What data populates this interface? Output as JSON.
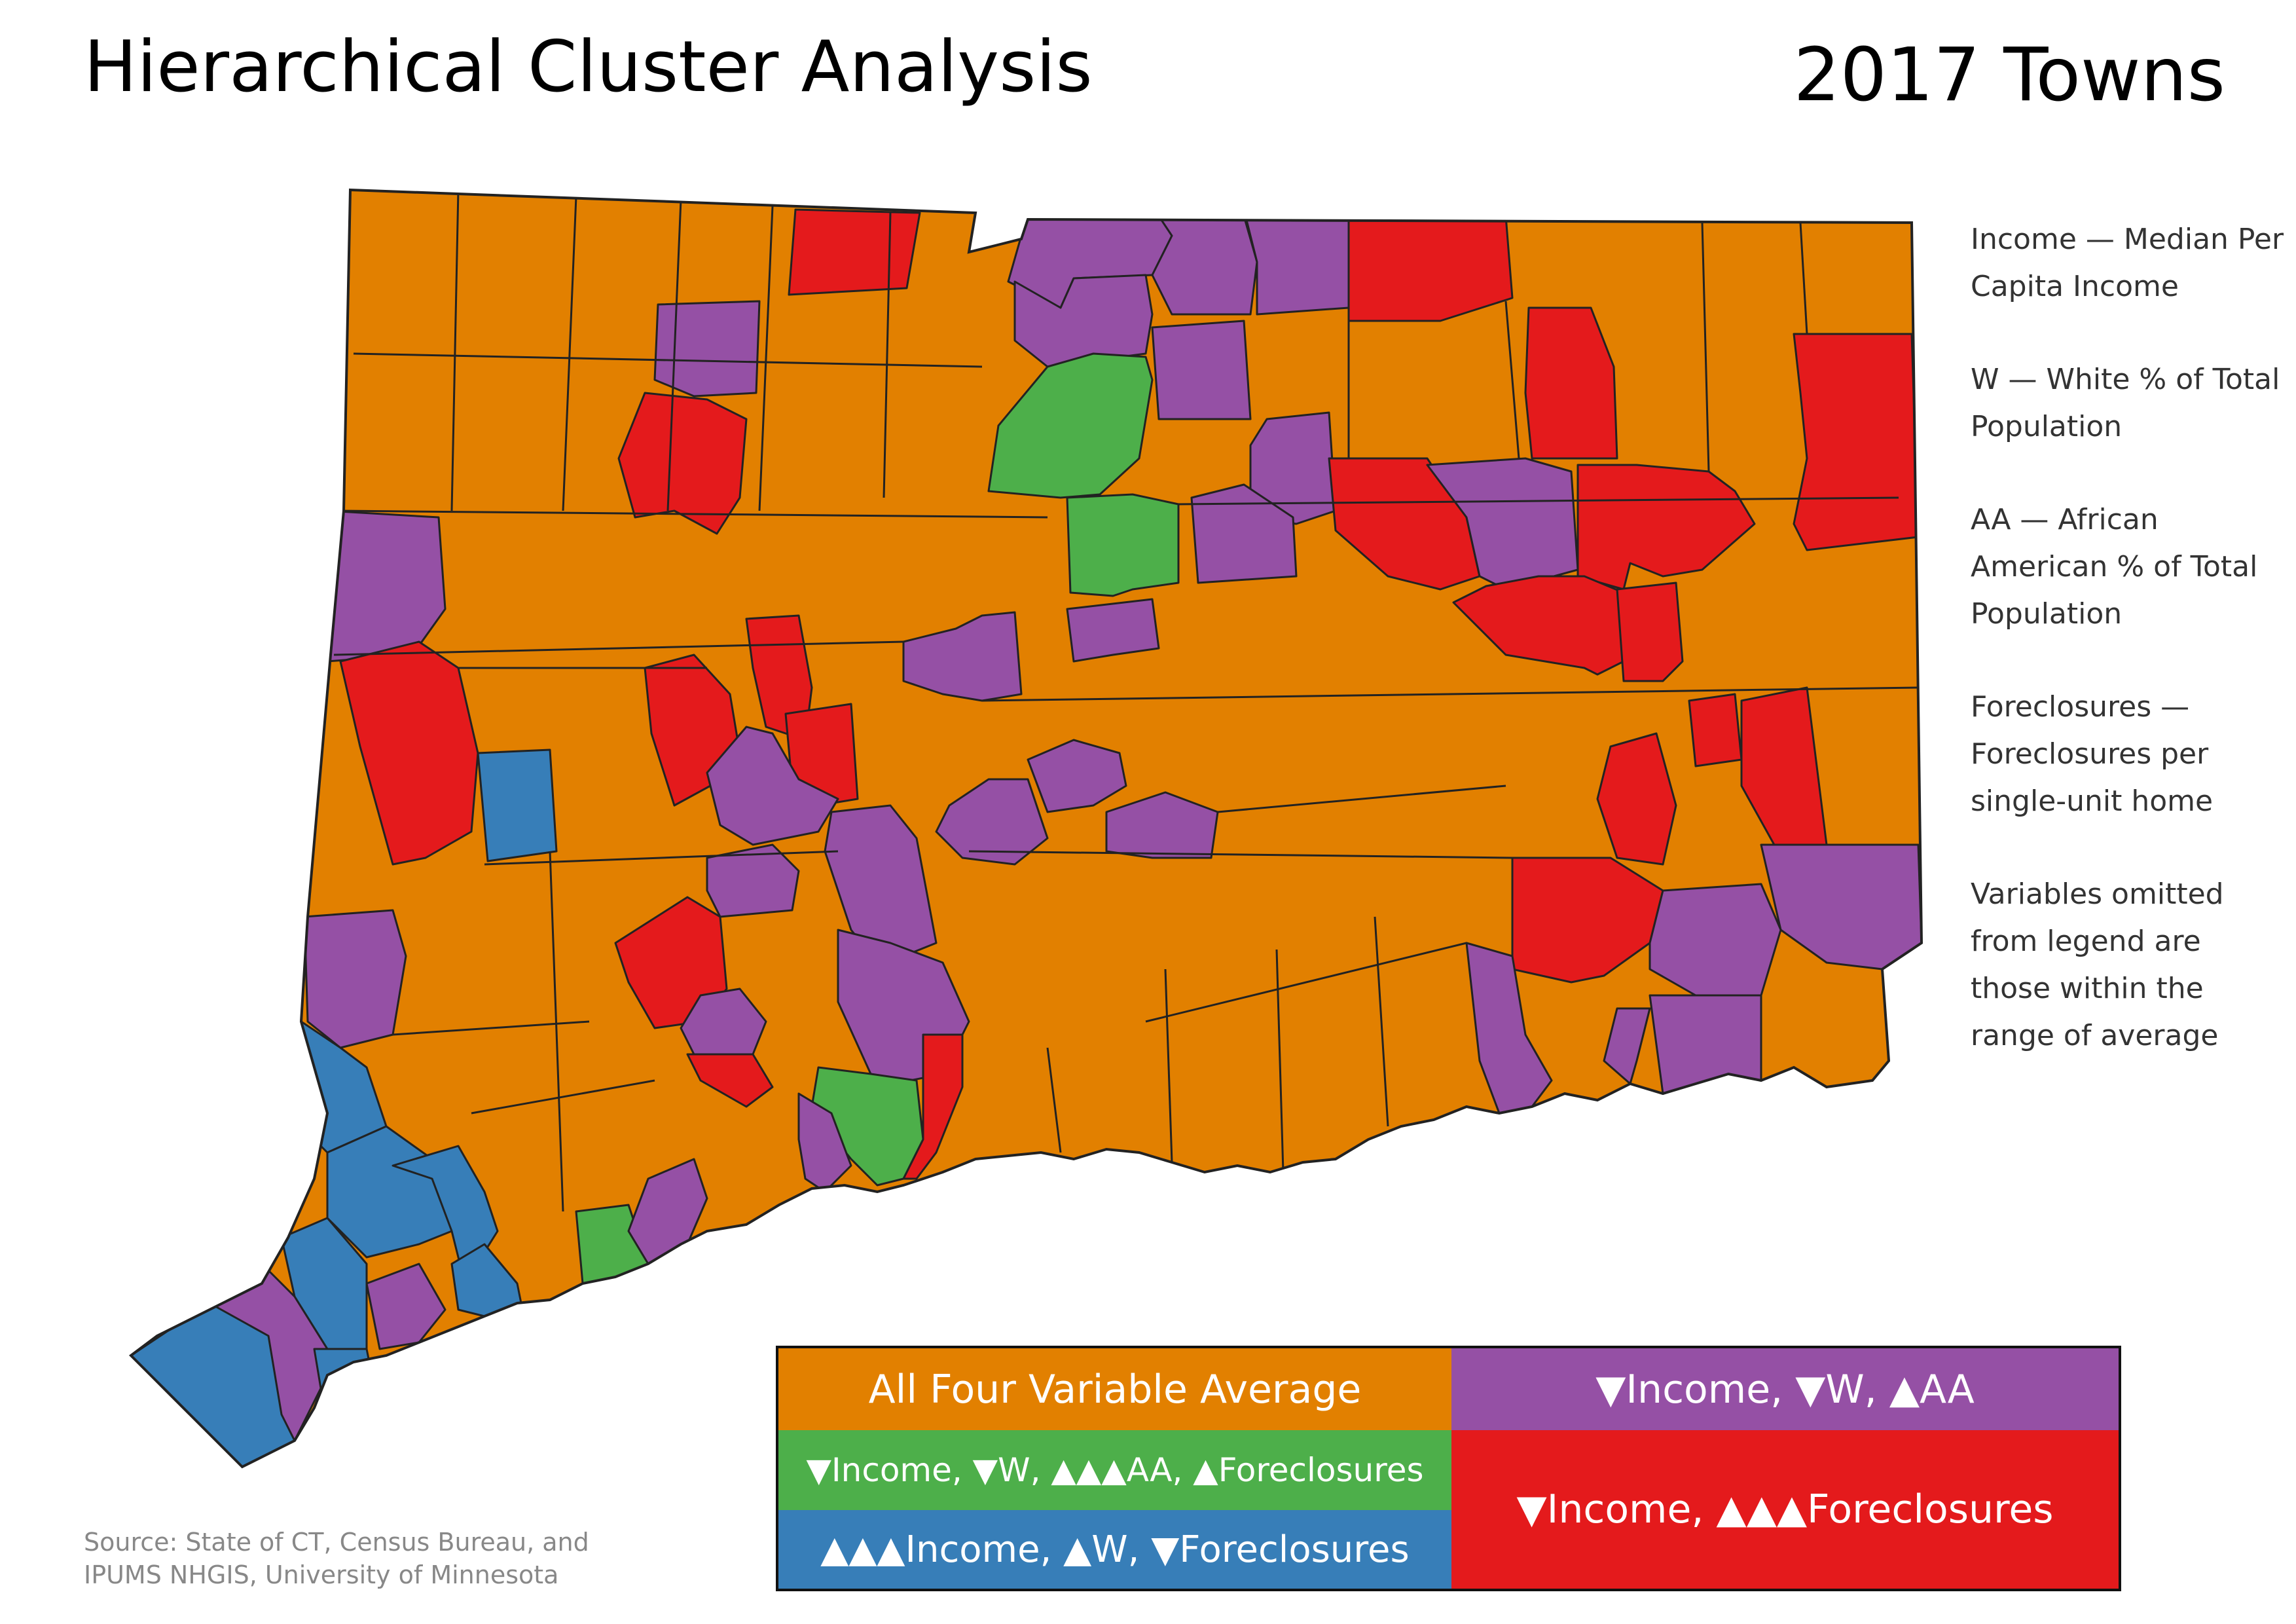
{
  "title": "Hierarchical Cluster Analysis",
  "year_label": "2017 Towns",
  "colors": {
    "average": "#E28000",
    "purple": "#9550A5",
    "green": "#4DAF4A",
    "blue": "#377EB8",
    "red": "#E41A1C",
    "border": "#222222"
  },
  "notes": [
    "Income — Median Per Capita Income",
    "W — White % of Total Population",
    "AA — African American % of Total Population",
    "Foreclosures — Foreclosures per single-unit home",
    "Variables omitted from legend are those within the range of average"
  ],
  "source": {
    "line1": "Source: State of CT, Census Bureau, and",
    "line2": "IPUMS NHGIS, University of Minnesota"
  },
  "legend": {
    "average": "All Four Variable Average",
    "purple": "▼Income, ▼W, ▲AA",
    "green": "▼Income, ▼W, ▲▲▲AA, ▲Foreclosures",
    "blue": "▲▲▲Income, ▲W, ▼Foreclosures",
    "red": "▼Income, ▲▲▲Foreclosures"
  }
}
